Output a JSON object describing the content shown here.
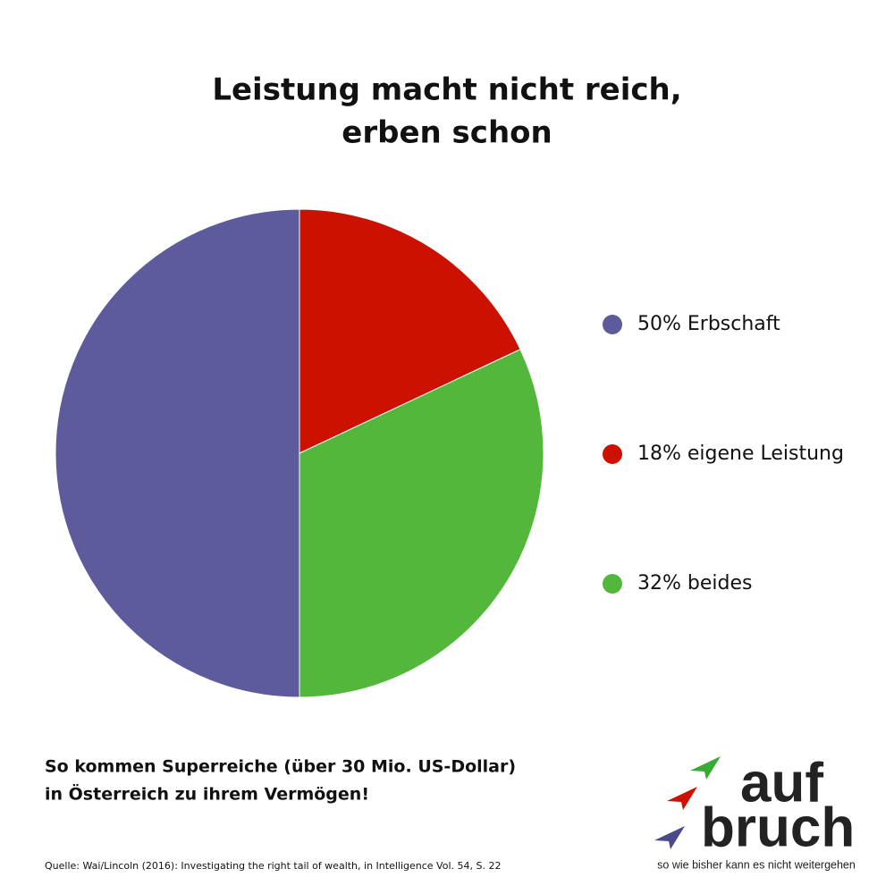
{
  "chart_data": {
    "type": "pie",
    "title": [
      "Leistung macht nicht reich,",
      "erben schon"
    ],
    "categories": [
      "50% Erbschaft",
      "18% eigene Leistung",
      "32% beides"
    ],
    "values": [
      50,
      18,
      32
    ],
    "colors": [
      "#5d5b9b",
      "#cc1100",
      "#52b73b"
    ],
    "subtitle": [
      "So kommen Superreiche (über 30 Mio. US-Dollar)",
      "in Österreich zu ihrem Vermögen!"
    ],
    "source": "Quelle: Wai/Lincoln (2016): Investigating the right tail of wealth, in Intelligence Vol. 54, S. 22"
  },
  "logo": {
    "line1": "auf",
    "line2": "bruch",
    "tagline": "so wie bisher kann es nicht weitergehen"
  }
}
